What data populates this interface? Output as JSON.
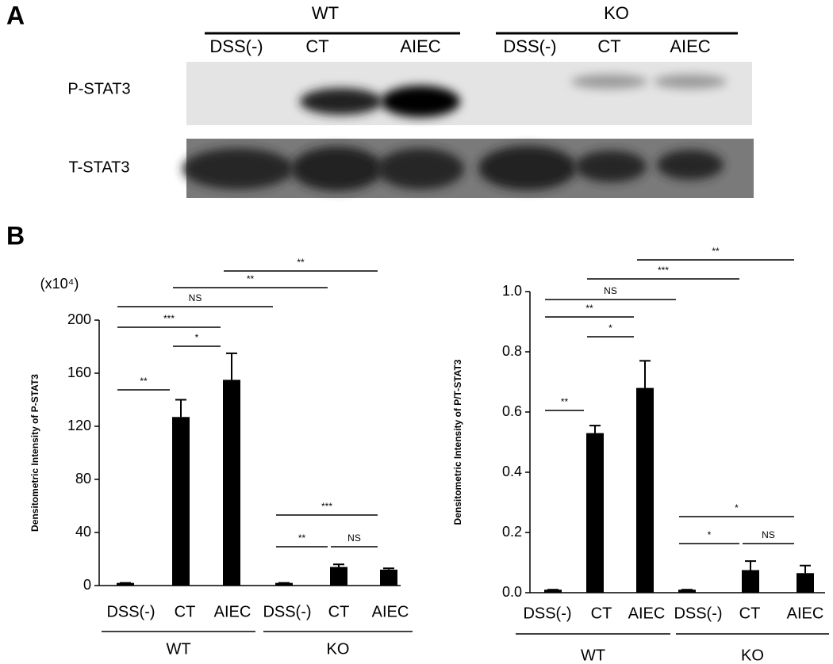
{
  "panel_a": {
    "label": "A",
    "groups": [
      {
        "name": "WT",
        "lanes": [
          "DSS(-)",
          "CT",
          "AIEC"
        ]
      },
      {
        "name": "KO",
        "lanes": [
          "DSS(-)",
          "CT",
          "AIEC"
        ]
      }
    ],
    "rows": [
      "P-STAT3",
      "T-STAT3"
    ]
  },
  "panel_b": {
    "label": "B"
  },
  "chart_data": [
    {
      "type": "bar",
      "ylabel": "Densitometric Intensity of P-STAT3",
      "unit_label": "(x10⁴)",
      "categories": [
        "DSS(-)",
        "CT",
        "AIEC",
        "DSS(-)",
        "CT",
        "AIEC"
      ],
      "groups": [
        {
          "name": "WT",
          "span": [
            0,
            2
          ]
        },
        {
          "name": "KO",
          "span": [
            3,
            5
          ]
        }
      ],
      "values": [
        2,
        127,
        155,
        2,
        14,
        12
      ],
      "errors": [
        0,
        13,
        20,
        0,
        2,
        1
      ],
      "color": "#000000",
      "ylim": [
        0,
        200
      ],
      "yticks": [
        0,
        40,
        80,
        120,
        160,
        200
      ],
      "comparisons": [
        {
          "from": 2,
          "to": 5,
          "label": "**"
        },
        {
          "from": 1,
          "to": 4,
          "label": "**"
        },
        {
          "from": 0,
          "to": 3,
          "label": "NS"
        },
        {
          "from": 0,
          "to": 2,
          "label": "***"
        },
        {
          "from": 1,
          "to": 2,
          "label": "*"
        },
        {
          "from": 0,
          "to": 1,
          "label": "**"
        },
        {
          "from": 3,
          "to": 5,
          "label": "***"
        },
        {
          "from": 3,
          "to": 4,
          "label": "**"
        },
        {
          "from": 4,
          "to": 5,
          "label": "NS"
        }
      ]
    },
    {
      "type": "bar",
      "ylabel": "Densitometric Intensity of P/T-STAT3",
      "categories": [
        "DSS(-)",
        "CT",
        "AIEC",
        "DSS(-)",
        "CT",
        "AIEC"
      ],
      "groups": [
        {
          "name": "WT",
          "span": [
            0,
            2
          ]
        },
        {
          "name": "KO",
          "span": [
            3,
            5
          ]
        }
      ],
      "values": [
        0.01,
        0.53,
        0.68,
        0.01,
        0.075,
        0.065
      ],
      "errors": [
        0,
        0.025,
        0.09,
        0,
        0.03,
        0.025
      ],
      "color": "#000000",
      "ylim": [
        0,
        1
      ],
      "yticks": [
        {
          "value": 0,
          "label": "0.0"
        },
        0.2,
        0.4,
        0.6,
        0.8,
        {
          "value": 1,
          "label": "1.0"
        }
      ],
      "comparisons": [
        {
          "from": 2,
          "to": 5,
          "label": "**"
        },
        {
          "from": 1,
          "to": 4,
          "label": "***"
        },
        {
          "from": 0,
          "to": 3,
          "label": "NS"
        },
        {
          "from": 0,
          "to": 2,
          "label": "**"
        },
        {
          "from": 1,
          "to": 2,
          "label": "*"
        },
        {
          "from": 0,
          "to": 1,
          "label": "**"
        },
        {
          "from": 3,
          "to": 5,
          "label": "*"
        },
        {
          "from": 3,
          "to": 4,
          "label": "*"
        },
        {
          "from": 4,
          "to": 5,
          "label": "NS"
        }
      ]
    }
  ]
}
